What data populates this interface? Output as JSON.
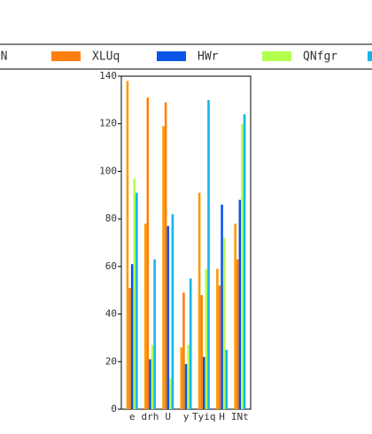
{
  "chart_data": {
    "type": "bar",
    "categories": [
      "e",
      "drh",
      "U",
      "y",
      "Tyiq",
      "H",
      "INt"
    ],
    "series": [
      {
        "name": "KeN",
        "color": "#ff9a00",
        "values": [
          138,
          78,
          119,
          26,
          91,
          59,
          78
        ]
      },
      {
        "name": "XLUq",
        "color": "#ff7f0e",
        "values": [
          51,
          131,
          129,
          49,
          48,
          52,
          63
        ]
      },
      {
        "name": "HWr",
        "color": "#0a55e8",
        "values": [
          61,
          21,
          77,
          19,
          22,
          86,
          88
        ]
      },
      {
        "name": "QNfgr",
        "color": "#b3ff4d",
        "values": [
          97,
          27,
          13,
          27,
          59,
          72,
          120
        ]
      },
      {
        "color": "#17b5e8",
        "values": [
          91,
          63,
          82,
          55,
          130,
          25,
          124
        ]
      }
    ],
    "ylim": [
      0,
      140
    ],
    "yticks": [
      0,
      20,
      40,
      60,
      80,
      100,
      120,
      140
    ]
  }
}
